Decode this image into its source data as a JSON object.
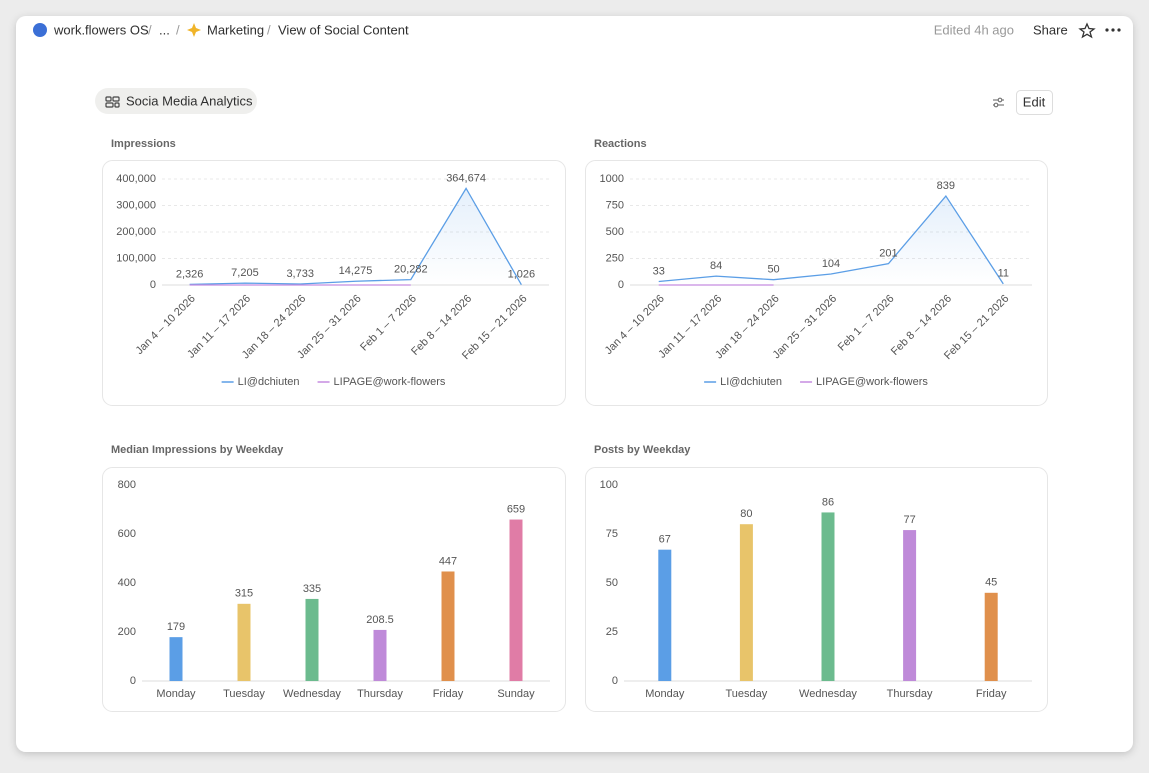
{
  "header": {
    "workspace": "work.flowers OS",
    "ellipsis": "...",
    "section": "Marketing",
    "page": "View of Social Content",
    "edited": "Edited 4h ago",
    "share": "Share"
  },
  "view": {
    "tab": "Socia Media Analytics",
    "edit": "Edit"
  },
  "chart_data": [
    {
      "type": "line",
      "title": "Impressions",
      "categories": [
        "Jan 4 – 10 2026",
        "Jan 11 – 17 2026",
        "Jan 18 – 24 2026",
        "Jan 25 – 31 2026",
        "Feb 1 – 7 2026",
        "Feb 8 – 14 2026",
        "Feb 15 – 21 2026"
      ],
      "series": [
        {
          "name": "LI@dchiuten",
          "color": "#5b9ee6",
          "values": [
            2326,
            7205,
            3733,
            14275,
            20282,
            364674,
            1026
          ],
          "value_labels": [
            "2,326",
            "7,205",
            "3,733",
            "14,275",
            "20,282",
            "364,674",
            "1,026"
          ]
        },
        {
          "name": "LIPAGE@work-flowers",
          "color": "#c58ce0",
          "values": [
            0,
            0,
            0,
            0,
            0,
            null,
            null
          ]
        }
      ],
      "ylim": [
        0,
        400000
      ],
      "yticks": [
        0,
        {
          "value": 100000,
          "label": "100,000"
        },
        {
          "value": 200000,
          "label": "200,000"
        },
        {
          "value": 300000,
          "label": "300,000"
        },
        {
          "value": 400000,
          "label": "400,000"
        }
      ],
      "grid": true
    },
    {
      "type": "line",
      "title": "Reactions",
      "categories": [
        "Jan 4 – 10 2026",
        "Jan 11 – 17 2026",
        "Jan 18 – 24 2026",
        "Jan 25 – 31 2026",
        "Feb 1 – 7 2026",
        "Feb 8 – 14 2026",
        "Feb 15 – 21 2026"
      ],
      "series": [
        {
          "name": "LI@dchiuten",
          "color": "#5b9ee6",
          "values": [
            33,
            84,
            50,
            104,
            201,
            839,
            11
          ]
        },
        {
          "name": "LIPAGE@work-flowers",
          "color": "#c58ce0",
          "values": [
            0,
            0,
            0,
            null,
            null,
            null,
            null
          ]
        }
      ],
      "ylim": [
        0,
        1000
      ],
      "yticks": [
        0,
        250,
        500,
        750,
        1000
      ],
      "grid": true
    },
    {
      "type": "bar",
      "title": "Median Impressions by Weekday",
      "categories": [
        "Monday",
        "Tuesday",
        "Wednesday",
        "Thursday",
        "Friday",
        "Sunday"
      ],
      "values": [
        179,
        315,
        335,
        208.5,
        447,
        659
      ],
      "colors": [
        "#5b9ee6",
        "#e8c46a",
        "#6cbb8e",
        "#bf8ad9",
        "#e0904c",
        "#e07ca6"
      ],
      "ylim": [
        0,
        800
      ],
      "yticks": [
        0,
        200,
        400,
        600,
        800
      ],
      "grid": false
    },
    {
      "type": "bar",
      "title": "Posts by Weekday",
      "categories": [
        "Monday",
        "Tuesday",
        "Wednesday",
        "Thursday",
        "Friday"
      ],
      "values": [
        67,
        80,
        86,
        77,
        45
      ],
      "colors": [
        "#5b9ee6",
        "#e8c46a",
        "#6cbb8e",
        "#bf8ad9",
        "#e0904c"
      ],
      "ylim": [
        0,
        100
      ],
      "yticks": [
        0,
        25,
        50,
        75,
        100
      ],
      "grid": false
    }
  ]
}
